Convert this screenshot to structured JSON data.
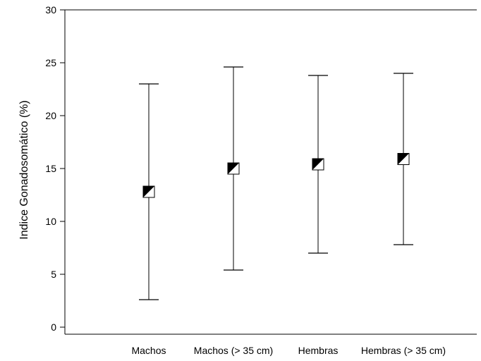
{
  "chart_data": {
    "type": "scatter",
    "subtype": "mean-with-range-bars",
    "title": "",
    "xlabel": "",
    "ylabel": "Indice Gonadosomático (%)",
    "ylim": [
      0,
      30
    ],
    "yticks": [
      0,
      5,
      10,
      15,
      20,
      25,
      30
    ],
    "grid": false,
    "legend": "none",
    "categories": [
      "Machos",
      "Machos (> 35 cm)",
      "Hembras",
      "Hembras (> 35 cm)"
    ],
    "series": [
      {
        "mean": [
          12.8,
          15.0,
          15.4,
          15.9
        ],
        "lower": [
          2.6,
          5.4,
          7.0,
          7.8
        ],
        "upper": [
          23.0,
          24.6,
          23.8,
          24.0
        ]
      }
    ],
    "marker": "half-filled-square",
    "colors": {
      "line": "#000000",
      "fill": "#000000",
      "background": "#ffffff"
    }
  }
}
